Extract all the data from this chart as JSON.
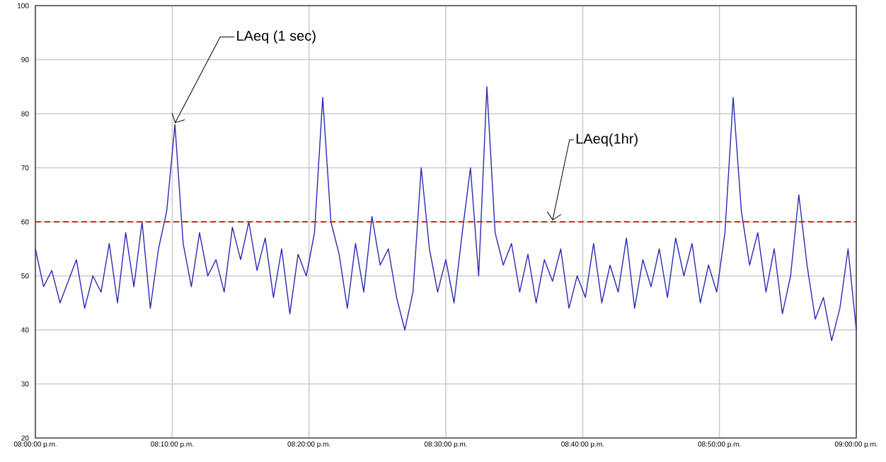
{
  "chart_data": {
    "type": "line",
    "x": [
      20.0,
      20.01,
      20.02,
      20.03,
      20.04,
      20.05,
      20.06,
      20.07,
      20.08,
      20.09,
      20.1,
      20.11,
      20.12,
      20.13,
      20.14,
      20.15,
      20.16,
      20.17,
      20.18,
      20.19,
      20.2,
      20.21,
      20.22,
      20.23,
      20.24,
      20.25,
      20.26,
      20.27,
      20.28,
      20.29,
      20.3,
      20.31,
      20.32,
      20.33,
      20.34,
      20.35,
      20.36,
      20.37,
      20.38,
      20.39,
      20.4,
      20.41,
      20.42,
      20.43,
      20.44,
      20.45,
      20.46,
      20.47,
      20.48,
      20.49,
      20.5,
      20.51,
      20.52,
      20.53,
      20.54,
      20.55,
      20.56,
      20.57,
      20.58,
      20.59,
      20.6,
      20.61,
      20.62,
      20.63,
      20.64,
      20.65,
      20.66,
      20.67,
      20.68,
      20.69,
      20.7,
      20.71,
      20.72,
      20.73,
      20.74,
      20.75,
      20.76,
      20.77,
      20.78,
      20.79,
      20.8,
      20.81,
      20.82,
      20.83,
      20.84,
      20.85,
      20.86,
      20.87,
      20.88,
      20.89,
      20.9,
      20.91,
      20.92,
      20.93,
      20.94,
      20.95,
      20.96,
      20.97,
      20.98,
      20.99,
      21.0
    ],
    "series": [
      {
        "color": "#2a2ab4",
        "values": [
          55,
          48,
          51,
          45,
          49,
          53,
          44,
          50,
          47,
          56,
          45,
          58,
          48,
          60,
          44,
          55,
          62,
          78,
          56,
          48,
          58,
          50,
          53,
          47,
          59,
          53,
          60,
          51,
          57,
          46,
          55,
          43,
          54,
          50,
          58,
          83,
          60,
          54,
          44,
          56,
          47,
          61,
          52,
          55,
          46,
          40,
          47,
          70,
          55,
          47,
          53,
          45,
          58,
          70,
          50,
          85,
          58,
          52,
          56,
          47,
          54,
          45,
          53,
          49,
          55,
          44,
          50,
          46,
          56,
          45,
          52,
          47,
          57,
          44,
          53,
          48,
          55,
          46,
          57,
          50,
          56,
          45,
          52,
          47,
          58,
          83,
          62,
          52,
          58,
          47,
          55,
          43,
          50,
          65,
          52,
          42,
          46,
          38,
          44,
          55,
          40
        ]
      }
    ],
    "xlim": [
      20,
      21
    ],
    "xticks": [
      {
        "value": 20,
        "label": "08:00:00 p.m."
      },
      {
        "value": 20.1667,
        "label": "08:10:00 p.m."
      },
      {
        "value": 20.3333,
        "label": "08:20:00 p.m."
      },
      {
        "value": 20.5,
        "label": "08:30:00 p.m."
      },
      {
        "value": 20.6667,
        "label": "08:40:00 p.m."
      },
      {
        "value": 20.8333,
        "label": "08:50:00 p.m."
      },
      {
        "value": 21,
        "label": "09:00:00 p.m."
      }
    ],
    "ylim": [
      20,
      100
    ],
    "yticks": [
      20,
      30,
      40,
      50,
      60,
      70,
      80,
      90,
      100
    ],
    "grid": true,
    "ref_lines": [
      {
        "axis": "y",
        "value": 60,
        "label": "LAeq(1hr)",
        "color": "#e02020",
        "line_style": "dashed"
      }
    ],
    "annotations": [
      {
        "text": "LAeq (1 sec)",
        "x": 20.17,
        "y": 78
      }
    ]
  }
}
